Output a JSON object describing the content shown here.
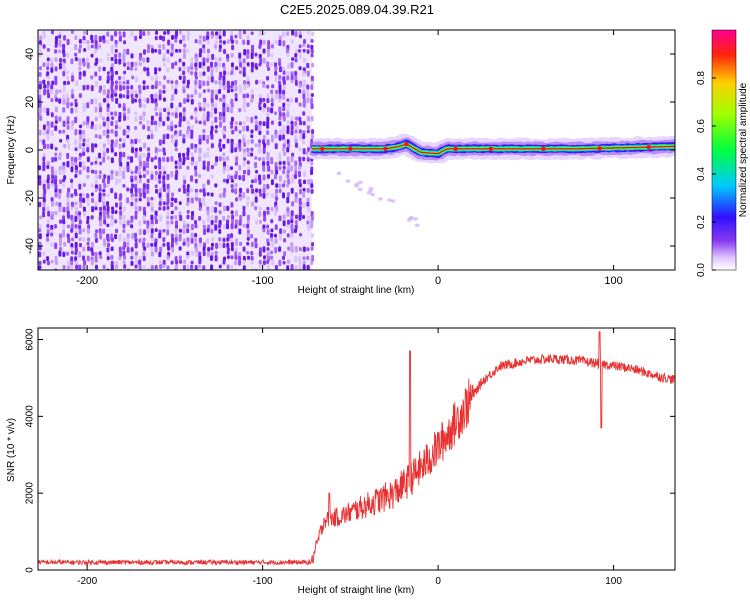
{
  "title": "C2E5.2025.089.04.39.R21",
  "chart_data": [
    {
      "type": "heatmap",
      "xlabel": "Height of straight line (km)",
      "ylabel": "Frequency (Hz)",
      "xlim": [
        -228,
        135
      ],
      "ylim": [
        -50,
        50
      ],
      "xticks": [
        -200,
        -100,
        0,
        100
      ],
      "yticks": [
        -40,
        -20,
        0,
        20,
        40
      ],
      "noise_region_x": [
        -228,
        -72
      ],
      "signal_line": [
        {
          "x": -72,
          "y": 0.5
        },
        {
          "x": -60,
          "y": 0.5
        },
        {
          "x": -45,
          "y": 0.5
        },
        {
          "x": -30,
          "y": 0.5
        },
        {
          "x": -22,
          "y": 1.5
        },
        {
          "x": -18,
          "y": 2.5
        },
        {
          "x": -10,
          "y": -1.0
        },
        {
          "x": 0,
          "y": -1.5
        },
        {
          "x": 5,
          "y": 0.5
        },
        {
          "x": 40,
          "y": 0.5
        },
        {
          "x": 80,
          "y": 0.5
        },
        {
          "x": 110,
          "y": 1.0
        },
        {
          "x": 135,
          "y": 1.5
        }
      ],
      "colorbar": {
        "label": "Normalized spectral amplitude",
        "ticks": [
          "0.0",
          "0.2",
          "0.4",
          "0.6",
          "0.8"
        ],
        "range": [
          0,
          1
        ]
      }
    },
    {
      "type": "line",
      "xlabel": "Height of straight line (km)",
      "ylabel": "SNR (10 * v/v)",
      "xlim": [
        -228,
        135
      ],
      "ylim": [
        0,
        6300
      ],
      "xticks": [
        -200,
        -100,
        0,
        100
      ],
      "yticks": [
        0,
        2000,
        4000,
        6000
      ],
      "color": "#e83030",
      "trend": [
        {
          "x": -228,
          "y": 200
        },
        {
          "x": -72,
          "y": 200
        },
        {
          "x": -65,
          "y": 1300
        },
        {
          "x": -55,
          "y": 1400
        },
        {
          "x": -40,
          "y": 1700
        },
        {
          "x": -25,
          "y": 2000
        },
        {
          "x": -15,
          "y": 2400
        },
        {
          "x": -5,
          "y": 2900
        },
        {
          "x": 5,
          "y": 3500
        },
        {
          "x": 15,
          "y": 4200
        },
        {
          "x": 25,
          "y": 4900
        },
        {
          "x": 35,
          "y": 5300
        },
        {
          "x": 50,
          "y": 5450
        },
        {
          "x": 65,
          "y": 5500
        },
        {
          "x": 80,
          "y": 5450
        },
        {
          "x": 95,
          "y": 5350
        },
        {
          "x": 110,
          "y": 5250
        },
        {
          "x": 125,
          "y": 5050
        },
        {
          "x": 135,
          "y": 4950
        }
      ],
      "spikes": [
        {
          "x": -16,
          "y": 5700
        },
        {
          "x": 92,
          "y": 6200
        },
        {
          "x": 93,
          "y": 3700
        },
        {
          "x": -62,
          "y": 2000
        }
      ]
    }
  ]
}
